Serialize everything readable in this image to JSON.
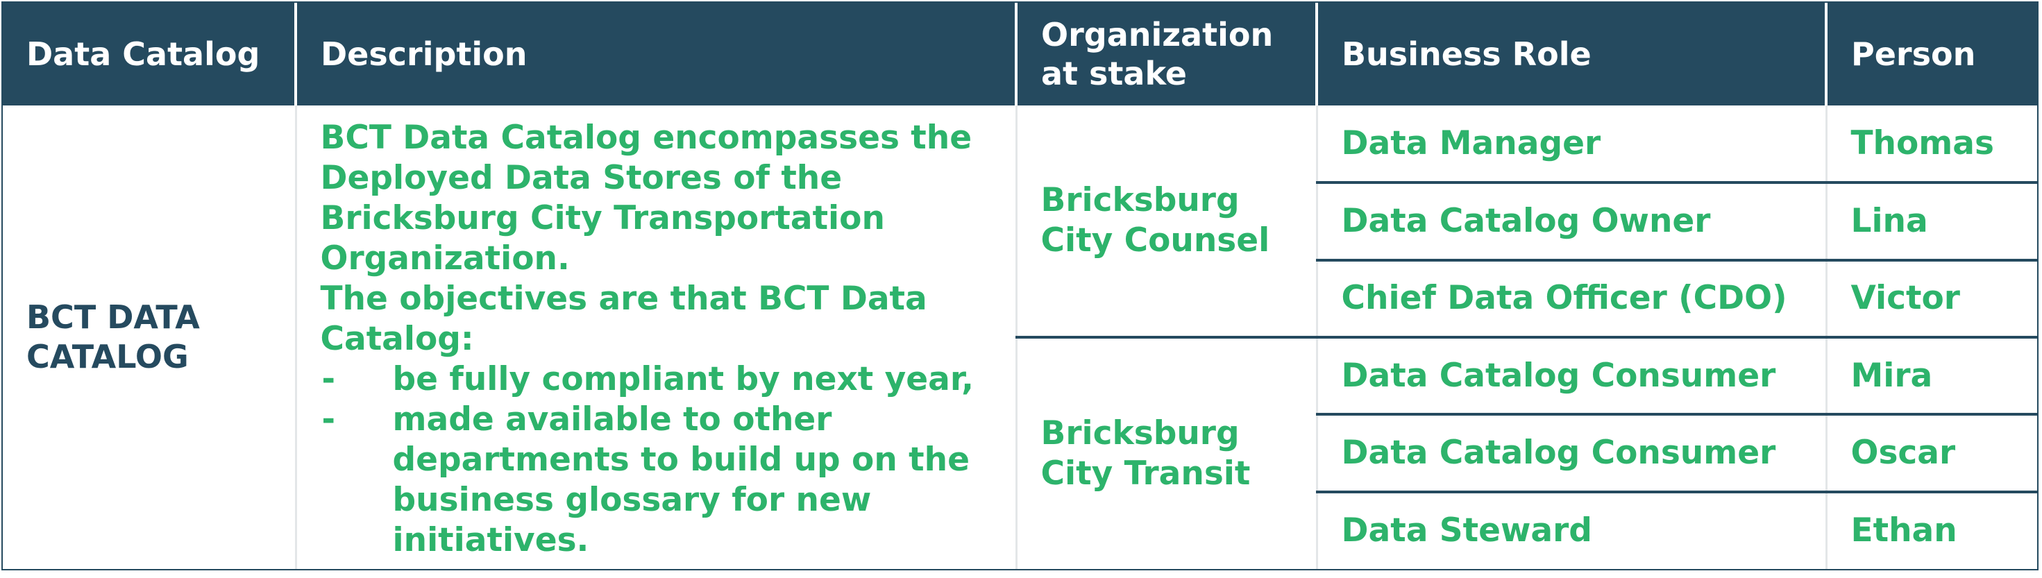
{
  "table": {
    "headers": [
      "Data Catalog",
      "Description",
      "Organization at stake",
      "Business Role",
      "Person"
    ],
    "catalog_name": "BCT DATA CATALOG",
    "description": {
      "paragraph_1": "BCT Data Catalog encompasses the Deployed Data Stores of the Bricksburg City Transportation Organization.",
      "paragraph_2": "The objectives are that BCT Data Catalog:",
      "bullet_marker": "-",
      "bullets": [
        "be fully compliant by next year,",
        "made available to other departments to build up on the business glossary for new initiatives."
      ]
    },
    "organizations": [
      "Bricksburg City Counsel",
      "Bricksburg City Transit"
    ],
    "rows": [
      {
        "role": "Data Manager",
        "person": "Thomas"
      },
      {
        "role": "Data Catalog Owner",
        "person": "Lina"
      },
      {
        "role": "Chief Data Officer (CDO)",
        "person": "Victor"
      },
      {
        "role": "Data Catalog Consumer",
        "person": "Mira"
      },
      {
        "role": "Data Catalog Consumer",
        "person": "Oscar"
      },
      {
        "role": "Data Steward",
        "person": "Ethan"
      }
    ]
  },
  "colors": {
    "header_background": "#254a5f",
    "header_text": "#ffffff",
    "body_text_green": "#2db36b",
    "catalog_text": "#254a5f",
    "rule": "#254a5f"
  }
}
